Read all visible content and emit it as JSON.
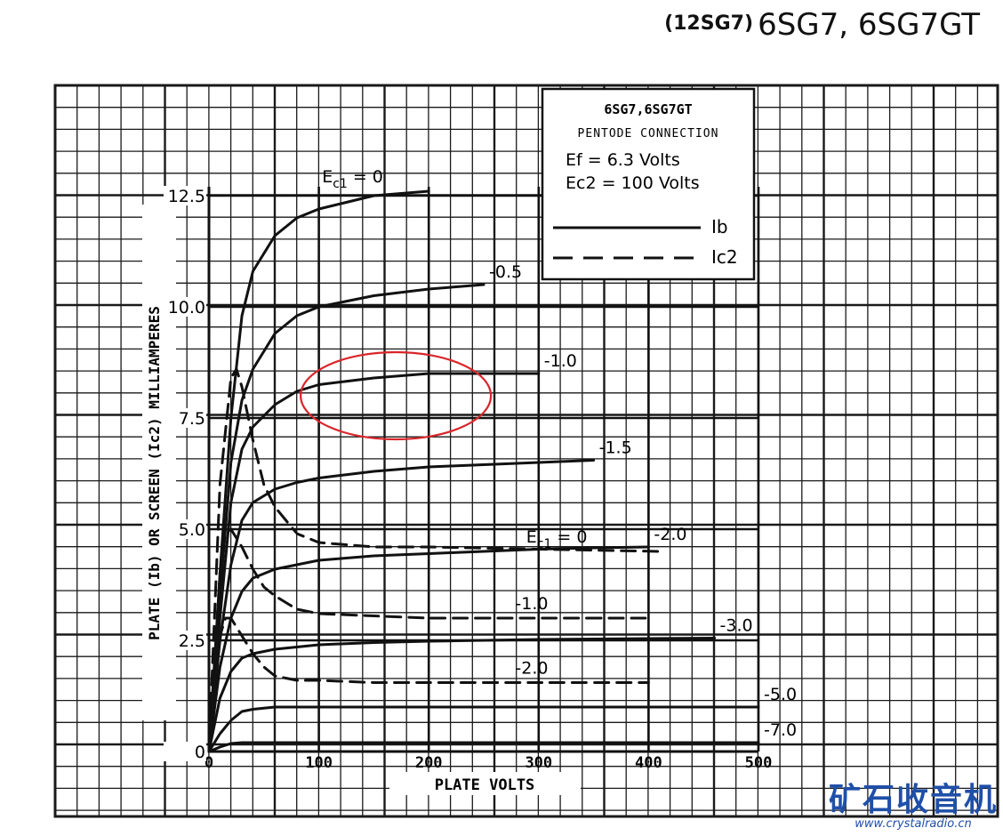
{
  "page_title": "(12SG7) 6SG7, 6SG7GT",
  "page_title_parts": {
    "small": "(12SG7)",
    "large": "6SG7, 6SG7GT"
  },
  "chart_data": {
    "type": "line",
    "xlabel": "PLATE VOLTS",
    "ylabel": "PLATE (Ib) OR SCREEN (Ic2)   MILLIAMPERES",
    "xlim": [
      0,
      500
    ],
    "ylim": [
      0,
      12.5
    ],
    "x_ticks": [
      0,
      100,
      200,
      300,
      400,
      500
    ],
    "x_tick_labels": [
      "0",
      "100",
      "200",
      "300",
      "400",
      "500"
    ],
    "y_ticks": [
      0,
      2.5,
      5.0,
      7.5,
      10.0,
      12.5
    ],
    "y_tick_labels": [
      "0",
      "2.5",
      "5.0",
      "7.5",
      "10.0",
      "12.5"
    ],
    "grid": true,
    "legend": {
      "placement": "top-right",
      "title": "6SG7,6SG7GT",
      "subtitle": "PENTODE CONNECTION",
      "conditions": [
        "Ef  = 6.3 Volts",
        "Ec2 = 100 Volts"
      ],
      "entries": [
        {
          "name": "Ib",
          "style": "solid"
        },
        {
          "name": "Ic2",
          "style": "dashed"
        }
      ]
    },
    "plate_current_label_prefix": "Ec1 = 0",
    "screen_current_label_prefix": "Ec1 = 0",
    "series": [
      {
        "name": "Ib, Ec1 = 0",
        "label": "0",
        "style": "solid",
        "x": [
          0,
          10,
          20,
          30,
          40,
          60,
          80,
          100,
          150,
          200
        ],
        "y": [
          0,
          4.0,
          7.5,
          9.8,
          10.8,
          11.6,
          12.0,
          12.2,
          12.5,
          12.6
        ]
      },
      {
        "name": "Ib, Ec1 = -0.5",
        "label": "-0.5",
        "style": "solid",
        "x": [
          0,
          10,
          20,
          30,
          40,
          60,
          80,
          100,
          150,
          200,
          250
        ],
        "y": [
          0,
          3.5,
          6.5,
          7.9,
          8.6,
          9.4,
          9.8,
          10.0,
          10.25,
          10.4,
          10.5
        ]
      },
      {
        "name": "Ib, Ec1 = -1.0",
        "label": "-1.0",
        "style": "solid",
        "x": [
          0,
          10,
          20,
          30,
          40,
          60,
          80,
          100,
          150,
          200,
          250,
          300
        ],
        "y": [
          0,
          3.0,
          5.6,
          6.8,
          7.3,
          7.8,
          8.1,
          8.25,
          8.4,
          8.5,
          8.5,
          8.5
        ]
      },
      {
        "name": "Ib, Ec1 = -1.5",
        "label": "-1.5",
        "style": "solid",
        "x": [
          0,
          10,
          20,
          30,
          40,
          60,
          80,
          100,
          150,
          200,
          250,
          300,
          350
        ],
        "y": [
          0,
          2.5,
          4.2,
          5.2,
          5.6,
          5.9,
          6.05,
          6.15,
          6.3,
          6.4,
          6.45,
          6.5,
          6.55
        ]
      },
      {
        "name": "Ib, Ec1 = -2.0",
        "label": "-2.0",
        "style": "solid",
        "x": [
          0,
          10,
          20,
          30,
          40,
          60,
          80,
          100,
          150,
          200,
          250,
          300,
          350,
          400
        ],
        "y": [
          0,
          1.9,
          3.0,
          3.6,
          3.9,
          4.1,
          4.2,
          4.3,
          4.4,
          4.45,
          4.5,
          4.55,
          4.58,
          4.6
        ]
      },
      {
        "name": "Ib, Ec1 = -3.0",
        "label": "-3.0",
        "style": "solid",
        "x": [
          0,
          10,
          20,
          30,
          40,
          60,
          80,
          100,
          150,
          200,
          250,
          300,
          350,
          400,
          460
        ],
        "y": [
          0,
          1.2,
          1.8,
          2.1,
          2.2,
          2.3,
          2.35,
          2.4,
          2.45,
          2.48,
          2.5,
          2.52,
          2.53,
          2.54,
          2.55
        ]
      },
      {
        "name": "Ib, Ec1 = -5.0",
        "label": "-5.0",
        "style": "solid",
        "x": [
          0,
          10,
          20,
          30,
          40,
          60,
          100,
          200,
          300,
          400,
          500
        ],
        "y": [
          0,
          0.4,
          0.7,
          0.9,
          0.95,
          1.0,
          1.0,
          1.0,
          1.0,
          1.0,
          1.0
        ]
      },
      {
        "name": "Ib, Ec1 = -7.0",
        "label": "-7.0",
        "style": "solid",
        "x": [
          0,
          10,
          20,
          30,
          40,
          60,
          100,
          200,
          300,
          400,
          500
        ],
        "y": [
          0,
          0.1,
          0.18,
          0.2,
          0.2,
          0.2,
          0.2,
          0.2,
          0.2,
          0.2,
          0.2
        ]
      },
      {
        "name": "Ic2, Ec1 = 0",
        "label": "0",
        "style": "dashed",
        "x": [
          0,
          10,
          20,
          25,
          30,
          40,
          50,
          60,
          80,
          100,
          150,
          200,
          300,
          410
        ],
        "y": [
          0,
          6.0,
          8.4,
          8.6,
          8.2,
          7.0,
          6.0,
          5.5,
          4.9,
          4.7,
          4.6,
          4.6,
          4.55,
          4.5
        ]
      },
      {
        "name": "Ic2, Ec1 = -1.0",
        "label": "-1.0",
        "style": "dashed",
        "x": [
          0,
          10,
          15,
          20,
          30,
          40,
          50,
          60,
          80,
          100,
          150,
          200,
          300,
          400
        ],
        "y": [
          0,
          4.0,
          4.9,
          5.0,
          4.6,
          4.1,
          3.7,
          3.5,
          3.2,
          3.1,
          3.05,
          3.0,
          3.0,
          3.0
        ]
      },
      {
        "name": "Ic2, Ec1 = -2.0",
        "label": "-2.0",
        "style": "dashed",
        "x": [
          0,
          10,
          15,
          20,
          30,
          40,
          50,
          60,
          80,
          100,
          150,
          200,
          300,
          400
        ],
        "y": [
          0,
          2.6,
          3.0,
          3.0,
          2.6,
          2.2,
          1.9,
          1.7,
          1.6,
          1.6,
          1.55,
          1.55,
          1.55,
          1.55
        ]
      }
    ],
    "annotations": [
      {
        "text": "",
        "shape": "ellipse",
        "color": "#d9262b",
        "x": 170,
        "y": 8.0
      }
    ]
  },
  "watermark": {
    "cn": "矿石收音机",
    "url": "www.crystalradio.cn"
  },
  "colors": {
    "ink": "#111111",
    "grid": "#1a1a1a",
    "annotation": "#d9262b",
    "watermark": "#1f4fa8"
  }
}
